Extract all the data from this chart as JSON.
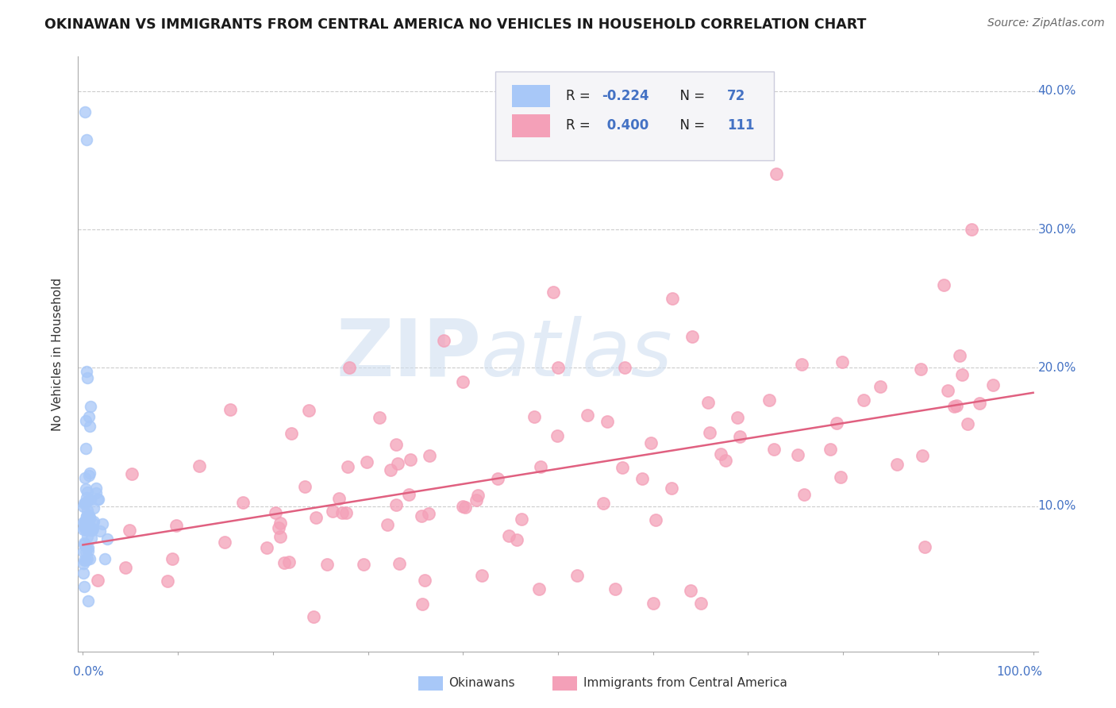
{
  "title": "OKINAWAN VS IMMIGRANTS FROM CENTRAL AMERICA NO VEHICLES IN HOUSEHOLD CORRELATION CHART",
  "source": "Source: ZipAtlas.com",
  "ylabel": "No Vehicles in Household",
  "color_okinawan": "#a8c8f8",
  "color_immigrant": "#f4a0b8",
  "color_immigrant_line": "#e06080",
  "watermark_zip": "ZIP",
  "watermark_atlas": "atlas",
  "ytick_color": "#4472c4",
  "legend_box_color": "#e8e8f0",
  "r1_label": "R = -0.224",
  "n1_label": "N = 72",
  "r2_label": "R =  0.400",
  "n2_label": "N = 111"
}
